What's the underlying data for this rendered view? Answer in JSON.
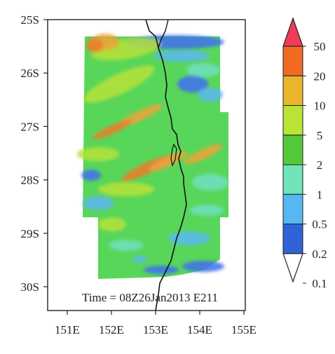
{
  "map": {
    "lat_labels": [
      "25S",
      "26S",
      "27S",
      "28S",
      "29S",
      "30S"
    ],
    "lon_labels": [
      "151E",
      "152E",
      "153E",
      "154E",
      "155E"
    ],
    "time_label": "Time = 08Z26Jan2013 E211",
    "field_colors": {
      "background_field": "#58d65a",
      "ocean_blue": "#3f6ff0",
      "light_blue": "#5cb7f2",
      "cyan": "#6fe0c0",
      "green": "#44cc3e",
      "yellow_green": "#b6e23a",
      "orange": "#f0a23a",
      "dark_orange": "#f07a2a",
      "coastline": "#111111"
    }
  },
  "colorbar": {
    "labels": [
      "50",
      "20",
      "10",
      "5",
      "2",
      "1",
      "0.5",
      "0.2",
      "0.1"
    ],
    "colors": [
      "#f03c5a",
      "#f06a23",
      "#e9b52b",
      "#b9e336",
      "#53c83a",
      "#6ee4b8",
      "#55b8f0",
      "#2f63d8",
      "#ffffff"
    ]
  }
}
